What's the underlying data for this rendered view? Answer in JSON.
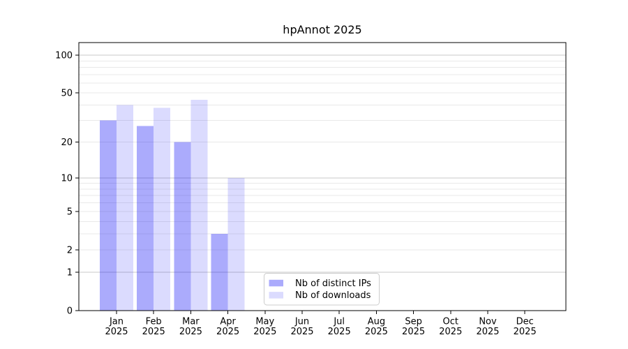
{
  "chart_data": {
    "type": "bar",
    "title": "hpAnnot 2025",
    "categories": [
      "Jan",
      "Feb",
      "Mar",
      "Apr",
      "May",
      "Jun",
      "Jul",
      "Aug",
      "Sep",
      "Oct",
      "Nov",
      "Dec"
    ],
    "category_year": "2025",
    "series": [
      {
        "name": "Nb of distinct IPs",
        "color": "rgba(0,0,245,0.33)",
        "values": [
          30,
          27,
          20,
          3,
          0,
          0,
          0,
          0,
          0,
          0,
          0,
          0
        ]
      },
      {
        "name": "Nb of downloads",
        "color": "rgba(0,0,245,0.14)",
        "values": [
          40,
          38,
          44,
          10,
          0,
          0,
          0,
          0,
          0,
          0,
          0,
          0
        ]
      }
    ],
    "y_axis": {
      "scale": "log1p",
      "tick_values": [
        0,
        1,
        2,
        5,
        10,
        20,
        50,
        100
      ],
      "major_gridlines": [
        1,
        10,
        100
      ],
      "minor_gridlines": [
        2,
        3,
        4,
        5,
        6,
        7,
        8,
        9,
        20,
        30,
        40,
        50,
        60,
        70,
        80,
        90
      ],
      "ylim": [
        0,
        125
      ]
    },
    "legend": {
      "entries": [
        "Nb of distinct IPs",
        "Nb of downloads"
      ]
    },
    "colors": {
      "grid_minor": "#e9e9e9",
      "grid_major": "#c9c9c9",
      "axis": "#000000",
      "background": "#ffffff",
      "legend_border": "#cccccc"
    }
  }
}
